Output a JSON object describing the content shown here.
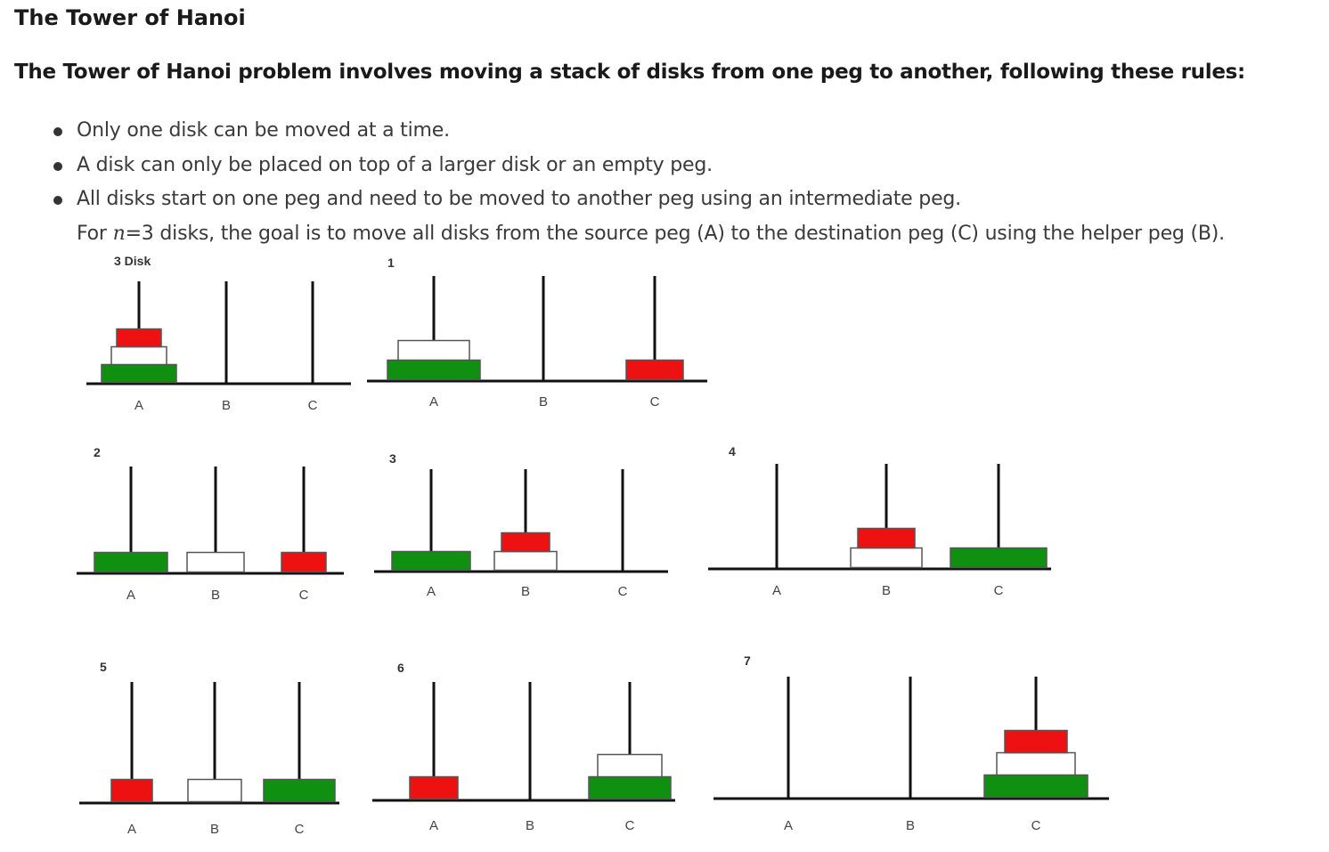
{
  "title": "The Tower of Hanoi",
  "intro": "The Tower of Hanoi problem involves moving a stack of disks from one peg to another, following these rules:",
  "rules": [
    "Only one disk can be moved at a time.",
    "A disk can only be placed on top of a larger disk or an empty peg.",
    "All disks start on one peg and need to be moved to another peg using an intermediate peg."
  ],
  "goal": {
    "prefix": "For ",
    "var": "n",
    "eq": "=3",
    "suffix": " disks, the goal is to move all disks from the source peg (A) to the destination peg (C) using the helper peg (B)."
  },
  "colors": {
    "large_disk": "#109010",
    "medium_disk": "#ffffff",
    "small_disk": "#ee1111",
    "peg": "#111111",
    "start_label": "#1f7a3a"
  },
  "diagram": {
    "peg_names": [
      "A",
      "B",
      "C"
    ],
    "panels": [
      {
        "label": "3 Disk",
        "pegs": [
          [
            "large",
            "medium",
            "small"
          ],
          [],
          []
        ]
      },
      {
        "label": "1",
        "pegs": [
          [
            "large",
            "medium"
          ],
          [],
          [
            "small"
          ]
        ]
      },
      {
        "label": "2",
        "pegs": [
          [
            "large"
          ],
          [
            "medium"
          ],
          [
            "small"
          ]
        ]
      },
      {
        "label": "3",
        "pegs": [
          [
            "large"
          ],
          [
            "medium",
            "small"
          ],
          []
        ]
      },
      {
        "label": "4",
        "pegs": [
          [],
          [
            "medium",
            "small"
          ],
          [
            "large"
          ]
        ]
      },
      {
        "label": "5",
        "pegs": [
          [
            "small"
          ],
          [
            "medium"
          ],
          [
            "large"
          ]
        ]
      },
      {
        "label": "6",
        "pegs": [
          [
            "small"
          ],
          [],
          [
            "large",
            "medium"
          ]
        ]
      },
      {
        "label": "7",
        "pegs": [
          [],
          [],
          [
            "large",
            "medium",
            "small"
          ]
        ]
      }
    ]
  }
}
